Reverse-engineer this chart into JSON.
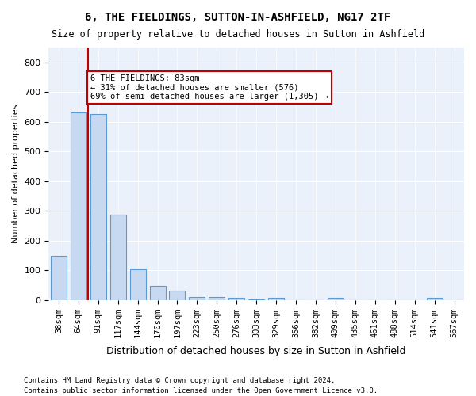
{
  "title1": "6, THE FIELDINGS, SUTTON-IN-ASHFIELD, NG17 2TF",
  "title2": "Size of property relative to detached houses in Sutton in Ashfield",
  "xlabel": "Distribution of detached houses by size in Sutton in Ashfield",
  "ylabel": "Number of detached properties",
  "categories": [
    "38sqm",
    "64sqm",
    "91sqm",
    "117sqm",
    "144sqm",
    "170sqm",
    "197sqm",
    "223sqm",
    "250sqm",
    "276sqm",
    "303sqm",
    "329sqm",
    "356sqm",
    "382sqm",
    "409sqm",
    "435sqm",
    "461sqm",
    "488sqm",
    "514sqm",
    "541sqm",
    "567sqm"
  ],
  "values": [
    148,
    632,
    625,
    288,
    103,
    47,
    30,
    11,
    11,
    8,
    1,
    6,
    0,
    0,
    7,
    0,
    0,
    0,
    0,
    6,
    0
  ],
  "bar_color": "#c6d9f0",
  "bar_edge_color": "#5b9bd5",
  "vline_x": 1.5,
  "vline_color": "#c00000",
  "annotation_text": "6 THE FIELDINGS: 83sqm\n← 31% of detached houses are smaller (576)\n69% of semi-detached houses are larger (1,305) →",
  "annotation_box_color": "#c00000",
  "ylim": [
    0,
    850
  ],
  "yticks": [
    0,
    100,
    200,
    300,
    400,
    500,
    600,
    700,
    800
  ],
  "footnote1": "Contains HM Land Registry data © Crown copyright and database right 2024.",
  "footnote2": "Contains public sector information licensed under the Open Government Licence v3.0.",
  "background_color": "#ffffff",
  "plot_bg_color": "#eaf1fb"
}
